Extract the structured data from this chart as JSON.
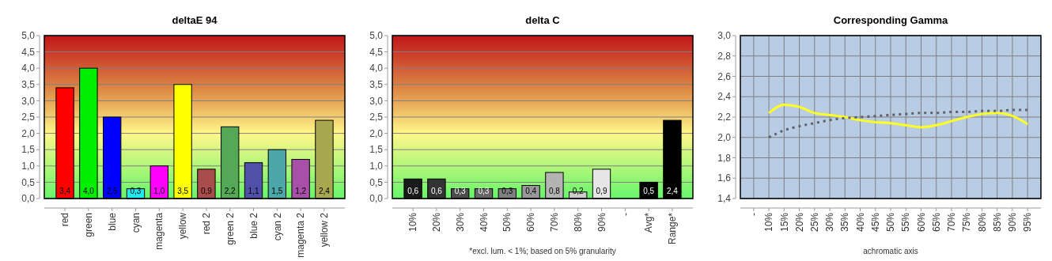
{
  "chart_data": [
    {
      "type": "bar",
      "title": "deltaE 94",
      "categories": [
        "red",
        "green",
        "blue",
        "cyan",
        "magenta",
        "yellow",
        "red 2",
        "green 2",
        "blue 2",
        "cyan 2",
        "magenta 2",
        "yellow 2"
      ],
      "values": [
        3.4,
        4.0,
        2.5,
        0.3,
        1.0,
        3.5,
        0.9,
        2.2,
        1.1,
        1.5,
        1.2,
        2.4
      ],
      "colors": [
        "#ff0000",
        "#00ee00",
        "#0000ff",
        "#22e8f0",
        "#ff00ff",
        "#ffff00",
        "#a84c4c",
        "#55a855",
        "#5050a8",
        "#4ca8a8",
        "#a850a8",
        "#a8a850"
      ],
      "value_labels": [
        "3,4",
        "4,0",
        "2,5",
        "0,3",
        "1,0",
        "3,5",
        "0,9",
        "2,2",
        "1,1",
        "1,5",
        "1,2",
        "2,4"
      ],
      "ylim": [
        0,
        5
      ],
      "yticks": [
        {
          "value": 0,
          "label": "0,0"
        },
        {
          "value": 0.5,
          "label": "0,5"
        },
        {
          "value": 1,
          "label": "1,0"
        },
        {
          "value": 1.5,
          "label": "1,5"
        },
        {
          "value": 2,
          "label": "2,0"
        },
        {
          "value": 2.5,
          "label": "2,5"
        },
        {
          "value": 3,
          "label": "3,0"
        },
        {
          "value": 3.5,
          "label": "3,5"
        },
        {
          "value": 4,
          "label": "4,0"
        },
        {
          "value": 4.5,
          "label": "4,5"
        },
        {
          "value": 5,
          "label": "5,0"
        }
      ],
      "grid": "y"
    },
    {
      "type": "bar",
      "title": "delta C",
      "xlabel": "*excl. lum. < 1%; based on 5% granularity",
      "categories": [
        "10%",
        "20%",
        "30%",
        "40%",
        "50%",
        "60%",
        "70%",
        "80%",
        "90%",
        "-",
        "Avg*",
        "Range*"
      ],
      "values": [
        0.6,
        0.6,
        0.3,
        0.3,
        0.3,
        0.4,
        0.8,
        0.2,
        0.9,
        null,
        0.5,
        2.4
      ],
      "colors": [
        "#1a1a1a",
        "#333333",
        "#4d4d4d",
        "#666666",
        "#808080",
        "#999999",
        "#b3b3b3",
        "#cccccc",
        "#e6e6e6",
        null,
        "#000000",
        "#000000"
      ],
      "value_labels": [
        "0,6",
        "0,6",
        "0,3",
        "0,3",
        "0,3",
        "0,4",
        "0,8",
        "0,2",
        "0,9",
        null,
        "0,5",
        "2,4"
      ],
      "ylim": [
        0,
        5
      ],
      "yticks": [
        {
          "value": 0,
          "label": "0,0"
        },
        {
          "value": 0.5,
          "label": "0,5"
        },
        {
          "value": 1,
          "label": "1,0"
        },
        {
          "value": 1.5,
          "label": "1,5"
        },
        {
          "value": 2,
          "label": "2,0"
        },
        {
          "value": 2.5,
          "label": "2,5"
        },
        {
          "value": 3,
          "label": "3,0"
        },
        {
          "value": 3.5,
          "label": "3,5"
        },
        {
          "value": 4,
          "label": "4,0"
        },
        {
          "value": 4.5,
          "label": "4,5"
        },
        {
          "value": 5,
          "label": "5,0"
        }
      ],
      "grid": "y"
    },
    {
      "type": "line",
      "title": "Corresponding Gamma",
      "xlabel": "achromatic axis",
      "categories": [
        "-",
        "10%",
        "15%",
        "20%",
        "25%",
        "30%",
        "35%",
        "40%",
        "45%",
        "50%",
        "55%",
        "60%",
        "65%",
        "70%",
        "75%",
        "80%",
        "85%",
        "90%",
        "95%"
      ],
      "series": [
        {
          "color": "#ffff22",
          "line_style": "solid",
          "values": [
            null,
            2.24,
            2.32,
            2.3,
            2.24,
            2.22,
            2.2,
            2.17,
            2.15,
            2.14,
            2.12,
            2.1,
            2.12,
            2.16,
            2.2,
            2.23,
            2.24,
            2.21,
            2.13
          ]
        },
        {
          "color": "#606068",
          "line_style": "dotted",
          "values": [
            null,
            2.0,
            2.07,
            2.11,
            2.14,
            2.17,
            2.19,
            2.2,
            2.21,
            2.22,
            2.23,
            2.24,
            2.24,
            2.25,
            2.25,
            2.26,
            2.26,
            2.27,
            2.27
          ]
        }
      ],
      "ylim": [
        1.4,
        3.0
      ],
      "yticks": [
        {
          "value": 1.4,
          "label": "1,4"
        },
        {
          "value": 1.6,
          "label": "1,6"
        },
        {
          "value": 1.8,
          "label": "1,8"
        },
        {
          "value": 2.0,
          "label": "2,0"
        },
        {
          "value": 2.2,
          "label": "2,2"
        },
        {
          "value": 2.4,
          "label": "2,4"
        },
        {
          "value": 2.6,
          "label": "2,6"
        },
        {
          "value": 2.8,
          "label": "2,8"
        },
        {
          "value": 3.0,
          "label": "3,0"
        }
      ],
      "grid": true
    }
  ]
}
